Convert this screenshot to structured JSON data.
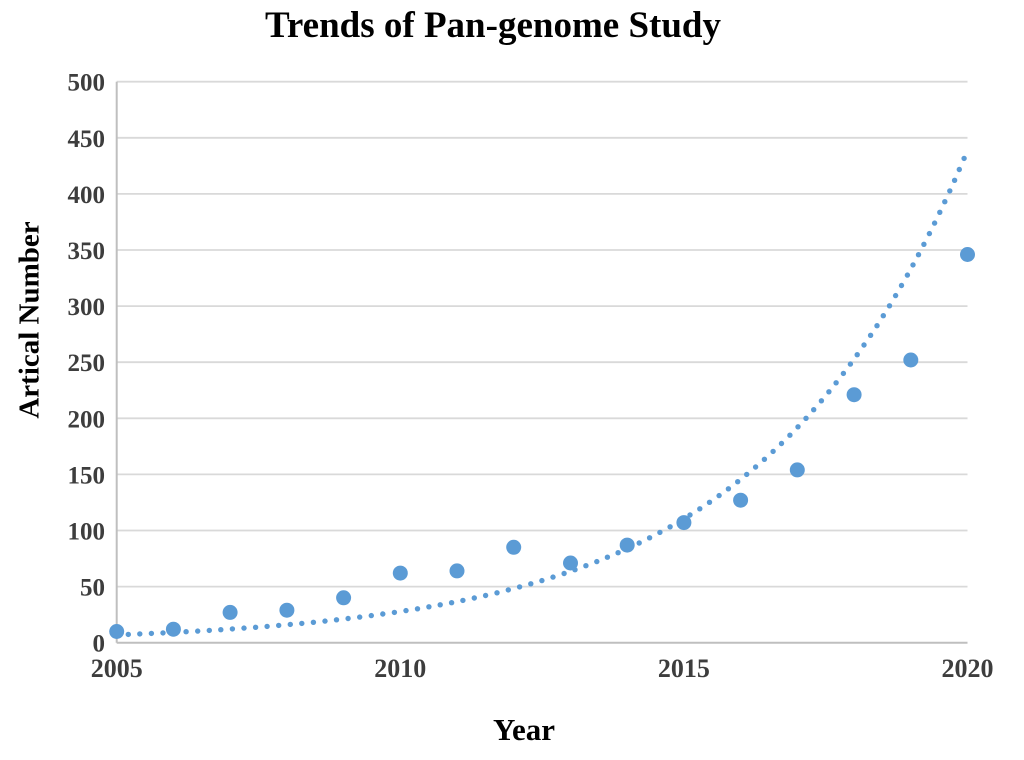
{
  "chart_data": {
    "type": "scatter",
    "title": "Trends of Pan-genome Study",
    "xlabel": "Year",
    "ylabel": "Artical Number",
    "x": [
      2005,
      2006,
      2007,
      2008,
      2009,
      2010,
      2011,
      2012,
      2013,
      2014,
      2015,
      2016,
      2017,
      2018,
      2019,
      2020
    ],
    "values": [
      10,
      12,
      27,
      29,
      40,
      62,
      64,
      85,
      71,
      87,
      107,
      127,
      154,
      221,
      252,
      346
    ],
    "xlim": [
      2005,
      2020
    ],
    "ylim": [
      0,
      500
    ],
    "x_ticks": [
      2005,
      2010,
      2015,
      2020
    ],
    "y_ticks": [
      0,
      50,
      100,
      150,
      200,
      250,
      300,
      350,
      400,
      450,
      500
    ],
    "grid": "horizontal",
    "legend": "none",
    "trendline": {
      "type": "exponential",
      "style": "dotted",
      "start_value": 7,
      "growth_per_year": 1.3177,
      "end_value": 439
    },
    "colors": {
      "point": "#5B9BD5",
      "trend": "#5B9BD5",
      "gridline": "#D9D9D9",
      "axis_line": "#BFBFBF",
      "tick_label": "#3D3D3D",
      "title": "#000000"
    }
  }
}
